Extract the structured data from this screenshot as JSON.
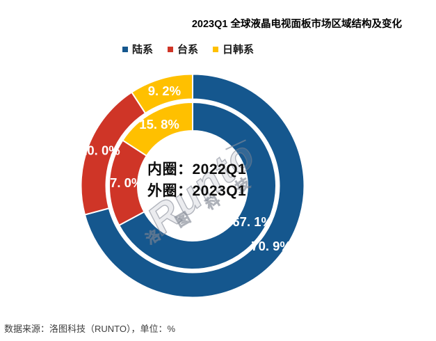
{
  "header": {
    "title": "2023Q1 全球液晶电视面板市场区域结构及变化"
  },
  "legend": {
    "items": [
      {
        "label": "陆系",
        "color": "#15578E"
      },
      {
        "label": "台系",
        "color": "#CF3527"
      },
      {
        "label": "日韩系",
        "color": "#FFC000"
      }
    ]
  },
  "chart_data": {
    "type": "pie",
    "subtype": "concentric-double-donut",
    "title": "2023Q1 全球液晶电视面板市场区域结构及变化",
    "categories": [
      "陆系",
      "台系",
      "日韩系"
    ],
    "colors": [
      "#15578E",
      "#CF3527",
      "#FFC000"
    ],
    "direction": "clockwise",
    "start_angle_deg": 0,
    "legend_position": "top",
    "unit": "%",
    "rings": [
      {
        "name": "2022Q1",
        "position": "inner",
        "values": [
          67.1,
          17.0,
          15.8
        ],
        "labels": [
          "67. 1%",
          "17. 0%",
          "15. 8%"
        ]
      },
      {
        "name": "2023Q1",
        "position": "outer",
        "values": [
          70.9,
          20.0,
          9.2
        ],
        "labels": [
          "70. 9%",
          "20. 0%",
          "9. 2%"
        ]
      }
    ],
    "center_annotation": {
      "line1": "内圈：2022Q1",
      "line2": "外圈：2023Q1"
    }
  },
  "watermark": {
    "brand": "Runto",
    "company": "洛 图 科 技"
  },
  "footer": {
    "source": "数据来源：洛图科技（RUNTO），单位：%"
  }
}
